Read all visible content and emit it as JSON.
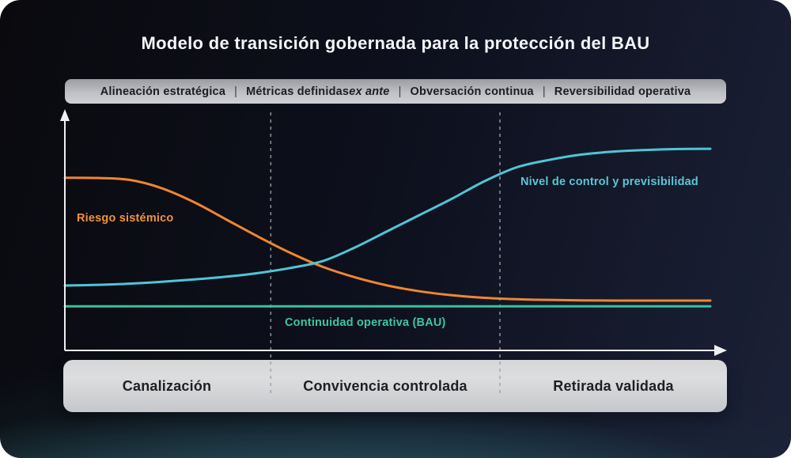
{
  "title": "Modelo de transición gobernada para la protección del BAU",
  "principles": {
    "item1": "Alineación estratégica",
    "item2_normal": "Métricas definidas ",
    "item2_italic": "ex ante",
    "item3": "Obversación continua",
    "item4": "Reversibilidad operativa",
    "separator": "|"
  },
  "colors": {
    "risk_orange": "#ef8630",
    "control_cyan": "#4ec6d6",
    "bau_green": "#35c39d",
    "axis_white": "#eef0f3",
    "bar_gray": "#c6c7ca",
    "background_navy": "#141a2c",
    "glow_teal": "#52acb6"
  },
  "chart_data": {
    "type": "line",
    "title": "",
    "xlabel": "",
    "ylabel": "",
    "ylim": [
      0,
      1
    ],
    "grid": false,
    "legend_position": "inline-labels",
    "x": [
      0,
      5,
      10,
      15,
      20,
      25,
      30,
      35,
      40,
      45,
      50,
      55,
      60,
      65,
      70,
      75,
      80,
      85,
      90,
      95,
      100
    ],
    "series": [
      {
        "name": "Riesgo sistémico",
        "color": "#ef8630",
        "values": [
          0.745,
          0.744,
          0.736,
          0.7,
          0.64,
          0.565,
          0.49,
          0.42,
          0.36,
          0.315,
          0.28,
          0.255,
          0.238,
          0.227,
          0.221,
          0.218,
          0.216,
          0.215,
          0.215,
          0.215,
          0.215
        ]
      },
      {
        "name": "Nivel de control y previsibilidad",
        "color": "#4ec6d6",
        "values": [
          0.28,
          0.283,
          0.288,
          0.296,
          0.306,
          0.318,
          0.334,
          0.356,
          0.386,
          0.445,
          0.515,
          0.585,
          0.655,
          0.73,
          0.79,
          0.822,
          0.845,
          0.858,
          0.865,
          0.869,
          0.87
        ]
      },
      {
        "name": "Continuidad operativa (BAU)",
        "color": "#35c39d",
        "values": [
          0.19,
          0.19,
          0.19,
          0.19,
          0.19,
          0.19,
          0.19,
          0.19,
          0.19,
          0.19,
          0.19,
          0.19,
          0.19,
          0.19,
          0.19,
          0.19,
          0.19,
          0.19,
          0.19,
          0.19,
          0.19
        ]
      }
    ],
    "phases": [
      "Canalización",
      "Convivencia controlada",
      "Retirada validada"
    ],
    "phase_boundaries_pct": [
      31.9,
      67.4
    ]
  }
}
